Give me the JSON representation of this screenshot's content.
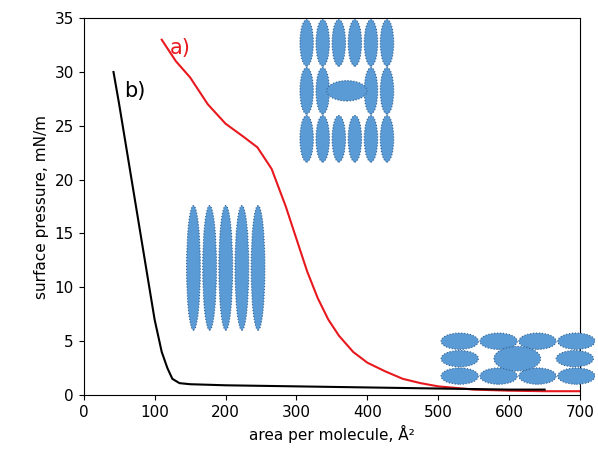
{
  "chart_data": {
    "type": "line",
    "x_label": "area per molecule, Å²",
    "y_label": "surface pressure, mN/m",
    "xlim": [
      0,
      700
    ],
    "xticks": [
      0,
      100,
      200,
      300,
      400,
      500,
      600,
      700
    ],
    "ylim": [
      0,
      35
    ],
    "yticks": [
      0,
      5,
      10,
      15,
      20,
      25,
      30,
      35
    ],
    "grid": false,
    "series": [
      {
        "name": "a)",
        "color": "#e8191e",
        "x": [
          110,
          130,
          150,
          175,
          200,
          225,
          245,
          265,
          285,
          300,
          315,
          330,
          345,
          360,
          380,
          400,
          425,
          450,
          475,
          500,
          550,
          600,
          650,
          700
        ],
        "values": [
          33,
          31,
          29.5,
          27,
          25.2,
          24,
          23,
          21,
          17.5,
          14.5,
          11.5,
          9,
          7,
          5.5,
          4,
          3,
          2.2,
          1.5,
          1.1,
          0.8,
          0.5,
          0.4,
          0.35,
          0.35
        ]
      },
      {
        "name": "b)",
        "color": "#000000",
        "x": [
          42,
          50,
          60,
          70,
          80,
          90,
          100,
          110,
          118,
          125,
          135,
          150,
          200,
          300,
          400,
          500,
          600,
          650
        ],
        "values": [
          30,
          27,
          23,
          19,
          15,
          11,
          7,
          4,
          2.5,
          1.5,
          1.1,
          1.0,
          0.9,
          0.8,
          0.7,
          0.6,
          0.5,
          0.5
        ]
      }
    ]
  }
}
